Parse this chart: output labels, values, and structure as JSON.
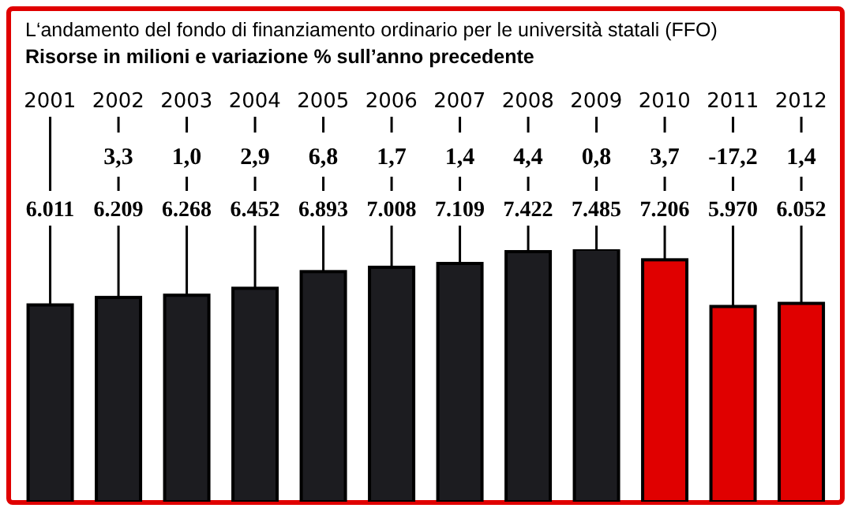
{
  "chart_data": {
    "type": "bar",
    "title": "L‘andamento del fondo di finanziamento ordinario per le università statali (FFO)",
    "subtitle": "Risorse in milioni e variazione % sull’anno precedente",
    "categories": [
      "2001",
      "2002",
      "2003",
      "2004",
      "2005",
      "2006",
      "2007",
      "2008",
      "2009",
      "2010",
      "2011",
      "2012"
    ],
    "values": [
      6011,
      6209,
      6268,
      6452,
      6893,
      7008,
      7109,
      7422,
      7485,
      7206,
      5970,
      6052
    ],
    "value_labels": [
      "6.011",
      "6.209",
      "6.268",
      "6.452",
      "6.893",
      "7.008",
      "7.109",
      "7.422",
      "7.485",
      "7.206",
      "5.970",
      "6.052"
    ],
    "colors": [
      "#1c1c20",
      "#1c1c20",
      "#1c1c20",
      "#1c1c20",
      "#1c1c20",
      "#1c1c20",
      "#1c1c20",
      "#1c1c20",
      "#1c1c20",
      "#e00000",
      "#e00000",
      "#e00000"
    ],
    "ylim": [
      800,
      7485
    ],
    "annotations": [
      "3,3",
      "1,0",
      "2,9",
      "6,8",
      "1,7",
      "1,4",
      "4,4",
      "0,8",
      "3,7",
      "-17,2",
      "1,4"
    ]
  }
}
